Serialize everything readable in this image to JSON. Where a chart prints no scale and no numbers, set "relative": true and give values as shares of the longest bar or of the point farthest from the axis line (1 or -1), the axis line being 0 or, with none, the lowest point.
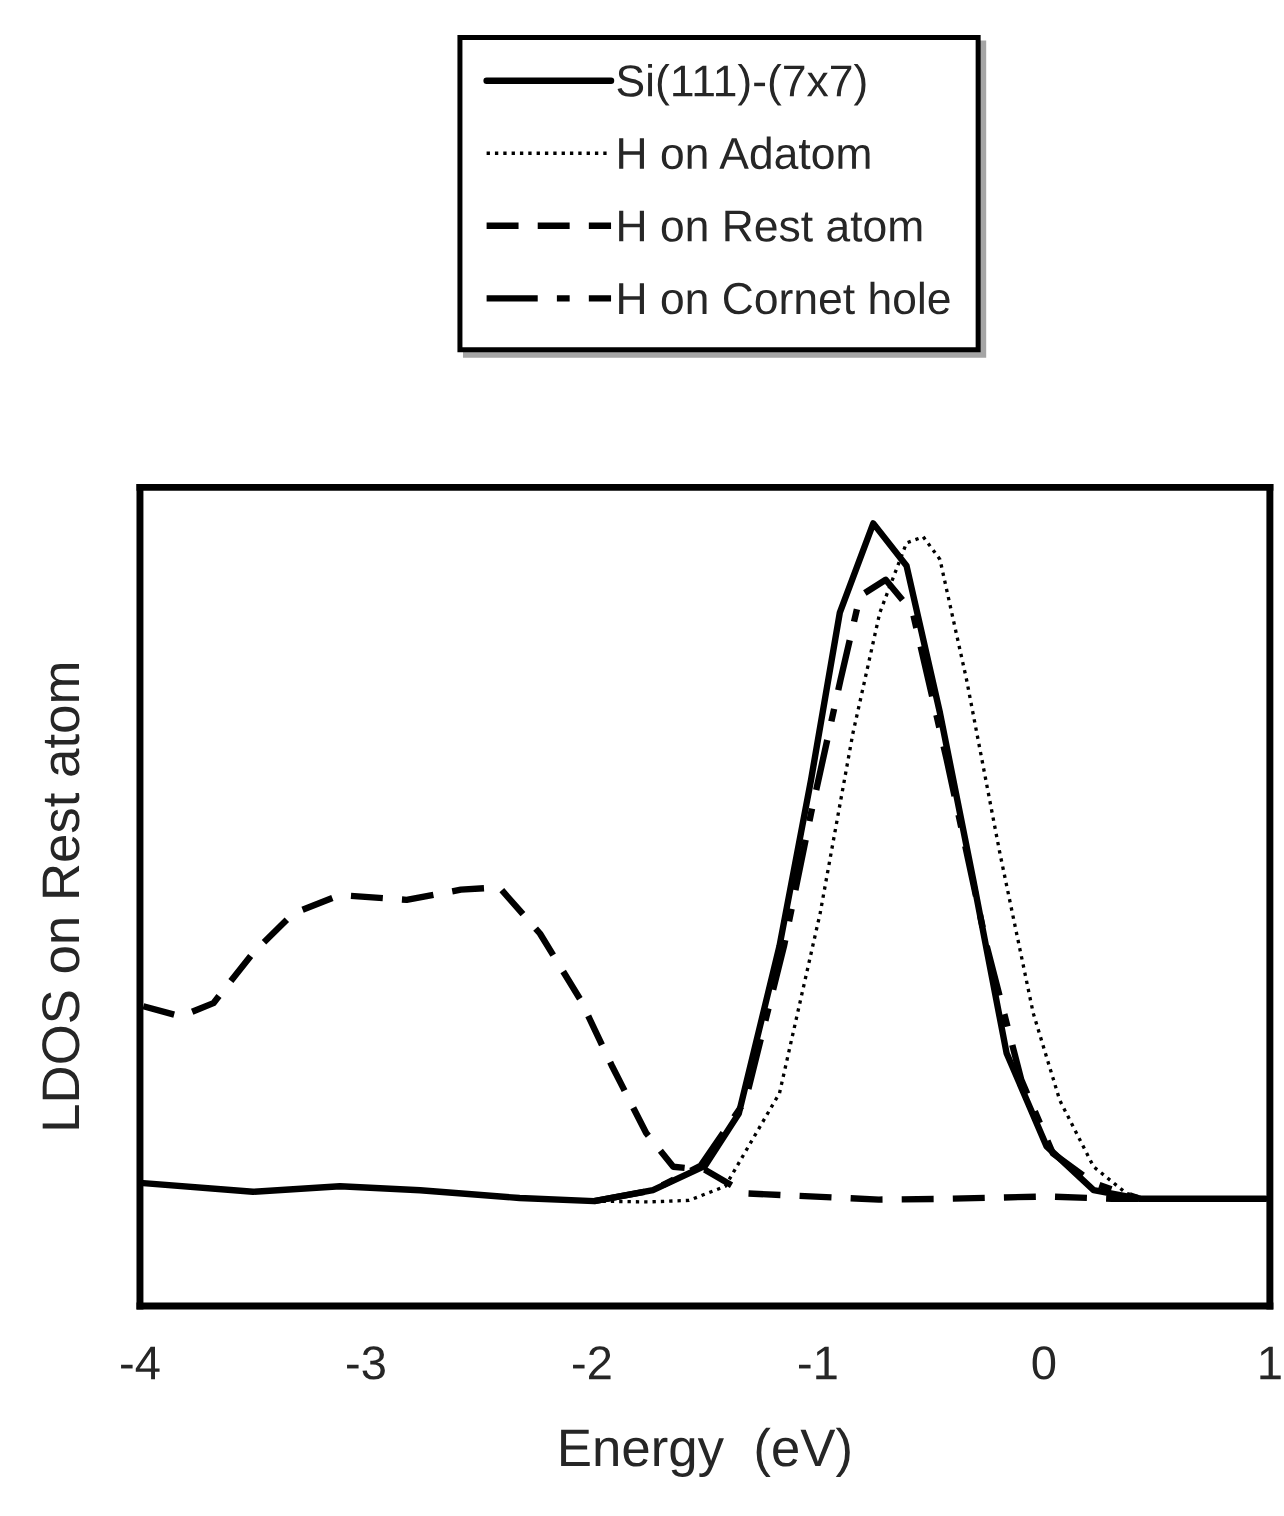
{
  "chart_data": {
    "type": "line",
    "relative": true,
    "xlabel": "Energy  (eV)",
    "ylabel": "LDOS on Rest atom",
    "xlim": [
      -4,
      1
    ],
    "xticks": [
      -4,
      -3,
      -2,
      -1,
      0,
      1
    ],
    "grid": false,
    "legend": "top",
    "tick_labels": "x",
    "marker": "none",
    "series": [
      {
        "name": "Si(111)-(7x7)",
        "color": "#000000",
        "line_style": "solid",
        "x": [
          -3.985,
          -3.5,
          -3.115,
          -2.76,
          -2.32,
          -1.99,
          -1.73,
          -1.5,
          -1.35,
          -1.17,
          -1.03,
          -0.903,
          -0.755,
          -0.608,
          -0.46,
          -0.313,
          -0.165,
          0.012,
          0.22,
          0.425,
          0.98
        ],
        "values": [
          0.157,
          0.146,
          0.153,
          0.148,
          0.138,
          0.134,
          0.148,
          0.179,
          0.246,
          0.46,
          0.673,
          0.886,
          1.0,
          0.946,
          0.758,
          0.545,
          0.323,
          0.204,
          0.148,
          0.137,
          0.137
        ]
      },
      {
        "name": "H on Adatom",
        "color": "#000000",
        "line_style": "dotted",
        "x": [
          -1.99,
          -1.75,
          -1.57,
          -1.41,
          -1.17,
          -0.99,
          -0.845,
          -0.726,
          -0.608,
          -0.534,
          -0.46,
          -0.342,
          -0.195,
          -0.047,
          0.07,
          0.22,
          0.365,
          0.45
        ],
        "values": [
          0.134,
          0.133,
          0.135,
          0.153,
          0.272,
          0.502,
          0.732,
          0.886,
          0.975,
          0.983,
          0.954,
          0.8,
          0.579,
          0.374,
          0.263,
          0.178,
          0.144,
          0.137
        ]
      },
      {
        "name": "H on Rest atom",
        "color": "#000000",
        "line_style": "dashed",
        "x": [
          -3.985,
          -3.82,
          -3.675,
          -3.5,
          -3.32,
          -3.115,
          -2.82,
          -2.58,
          -2.41,
          -2.23,
          -2.05,
          -1.91,
          -1.76,
          -1.64,
          -1.5,
          -1.32,
          -0.73,
          -0.43,
          0.01,
          0.3,
          0.45
        ],
        "values": [
          0.383,
          0.37,
          0.387,
          0.451,
          0.502,
          0.525,
          0.519,
          0.532,
          0.535,
          0.476,
          0.391,
          0.306,
          0.221,
          0.178,
          0.174,
          0.144,
          0.136,
          0.137,
          0.14,
          0.137,
          0.137
        ]
      },
      {
        "name": "H on Cornet hole",
        "color": "#000000",
        "line_style": "dashdot",
        "x": [
          -1.99,
          -1.73,
          -1.52,
          -1.32,
          -1.15,
          -1.03,
          -0.9,
          -0.814,
          -0.7,
          -0.58,
          -0.43,
          -0.253,
          -0.1,
          0.04,
          0.22,
          0.425
        ],
        "values": [
          0.134,
          0.148,
          0.179,
          0.263,
          0.46,
          0.63,
          0.8,
          0.907,
          0.928,
          0.886,
          0.698,
          0.46,
          0.289,
          0.195,
          0.157,
          0.137
        ]
      }
    ]
  }
}
